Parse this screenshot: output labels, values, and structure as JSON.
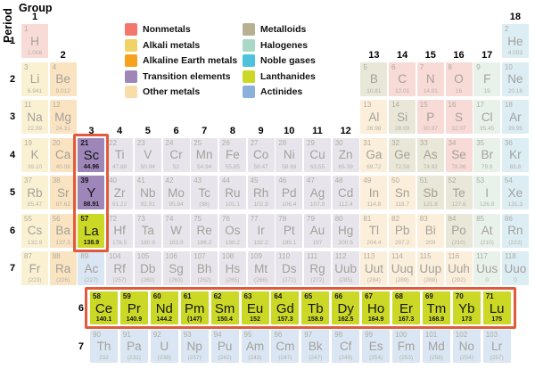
{
  "axis": {
    "group": "Group",
    "period": "Period"
  },
  "annotations": {
    "box_color": "#e25a3c",
    "boxes": [
      {
        "id": "group3-rare-earth-box",
        "contains": "Sc, Y, La"
      },
      {
        "id": "lanthanide-series-box",
        "contains": "Ce–Lu"
      }
    ]
  },
  "categories": {
    "nm": {
      "label": "Nonmetals",
      "solid": "#f4776d",
      "faded": "#f8dad7"
    },
    "ak": {
      "label": "Alkali metals",
      "solid": "#f0d266",
      "faded": "#faf1d3"
    },
    "ae": {
      "label": "Alkaline Earth metals",
      "solid": "#f6a21f",
      "faded": "#fae3c0"
    },
    "tr": {
      "label": "Transition elements",
      "solid": "#9e87b8",
      "faded": "#e8e4ec"
    },
    "om": {
      "label": "Other metals",
      "solid": "#f8ddab",
      "faded": "#fbeeda"
    },
    "md": {
      "label": "Metalloids",
      "solid": "#b6b192",
      "faded": "#e9e7d8"
    },
    "hg": {
      "label": "Halogenes",
      "solid": "#a9d8c6",
      "faded": "#e8f2ea"
    },
    "ng": {
      "label": "Noble gases",
      "solid": "#4cc2dd",
      "faded": "#dcedf4"
    },
    "la": {
      "label": "Lanthanides",
      "solid": "#ccd826",
      "faded": "#f0f3c8"
    },
    "ac": {
      "label": "Actinides",
      "solid": "#8bb0dc",
      "faded": "#dae6f3"
    }
  },
  "legend": {
    "column1": [
      "nm",
      "ak",
      "ae",
      "tr",
      "om"
    ],
    "column2": [
      "md",
      "hg",
      "ng",
      "la",
      "ac"
    ]
  },
  "group_labels": [
    {
      "t": "1",
      "col": 1,
      "above": 1
    },
    {
      "t": "2",
      "col": 2,
      "above": 2
    },
    {
      "t": "3",
      "col": 3,
      "above": 4
    },
    {
      "t": "4",
      "col": 4,
      "above": 4
    },
    {
      "t": "5",
      "col": 5,
      "above": 4
    },
    {
      "t": "6",
      "col": 6,
      "above": 4
    },
    {
      "t": "7",
      "col": 7,
      "above": 4
    },
    {
      "t": "8",
      "col": 8,
      "above": 4
    },
    {
      "t": "9",
      "col": 9,
      "above": 4
    },
    {
      "t": "10",
      "col": 10,
      "above": 4
    },
    {
      "t": "11",
      "col": 11,
      "above": 4
    },
    {
      "t": "12",
      "col": 12,
      "above": 4
    },
    {
      "t": "13",
      "col": 13,
      "above": 2
    },
    {
      "t": "14",
      "col": 14,
      "above": 2
    },
    {
      "t": "15",
      "col": 15,
      "above": 2
    },
    {
      "t": "16",
      "col": 16,
      "above": 2
    },
    {
      "t": "17",
      "col": 17,
      "above": 2
    },
    {
      "t": "18",
      "col": 18,
      "above": 1
    }
  ],
  "period_labels": [
    {
      "t": "1",
      "row": 1
    },
    {
      "t": "2",
      "row": 2
    },
    {
      "t": "3",
      "row": 3
    },
    {
      "t": "4",
      "row": 4
    },
    {
      "t": "5",
      "row": 5
    },
    {
      "t": "6",
      "row": 6
    },
    {
      "t": "7",
      "row": 7
    },
    {
      "t": "6",
      "row": 8
    },
    {
      "t": "7",
      "row": 9
    }
  ],
  "elements": [
    {
      "n": 1,
      "s": "H",
      "m": "1.008",
      "c": "nm",
      "r": 1,
      "g": 1
    },
    {
      "n": 2,
      "s": "He",
      "m": "4.003",
      "c": "ng",
      "r": 1,
      "g": 18
    },
    {
      "n": 3,
      "s": "Li",
      "m": "6.941",
      "c": "ak",
      "r": 2,
      "g": 1
    },
    {
      "n": 4,
      "s": "Be",
      "m": "9.012",
      "c": "ae",
      "r": 2,
      "g": 2
    },
    {
      "n": 5,
      "s": "B",
      "m": "10.81",
      "c": "md",
      "r": 2,
      "g": 13
    },
    {
      "n": 6,
      "s": "C",
      "m": "12.01",
      "c": "nm",
      "r": 2,
      "g": 14
    },
    {
      "n": 7,
      "s": "N",
      "m": "14.01",
      "c": "nm",
      "r": 2,
      "g": 15
    },
    {
      "n": 8,
      "s": "O",
      "m": "16",
      "c": "nm",
      "r": 2,
      "g": 16
    },
    {
      "n": 9,
      "s": "F",
      "m": "19",
      "c": "hg",
      "r": 2,
      "g": 17
    },
    {
      "n": 10,
      "s": "Ne",
      "m": "20.18",
      "c": "ng",
      "r": 2,
      "g": 18
    },
    {
      "n": 11,
      "s": "Na",
      "m": "22.99",
      "c": "ak",
      "r": 3,
      "g": 1
    },
    {
      "n": 12,
      "s": "Mg",
      "m": "24.31",
      "c": "ae",
      "r": 3,
      "g": 2
    },
    {
      "n": 13,
      "s": "Al",
      "m": "26.98",
      "c": "om",
      "r": 3,
      "g": 13
    },
    {
      "n": 14,
      "s": "Si",
      "m": "28.09",
      "c": "md",
      "r": 3,
      "g": 14
    },
    {
      "n": 15,
      "s": "P",
      "m": "30.97",
      "c": "nm",
      "r": 3,
      "g": 15
    },
    {
      "n": 16,
      "s": "S",
      "m": "32.07",
      "c": "nm",
      "r": 3,
      "g": 16
    },
    {
      "n": 17,
      "s": "Cl",
      "m": "35.45",
      "c": "hg",
      "r": 3,
      "g": 17
    },
    {
      "n": 18,
      "s": "Ar",
      "m": "39.95",
      "c": "ng",
      "r": 3,
      "g": 18
    },
    {
      "n": 19,
      "s": "K",
      "m": "39.10",
      "c": "ak",
      "r": 4,
      "g": 1
    },
    {
      "n": 20,
      "s": "Ca",
      "m": "40.08",
      "c": "ae",
      "r": 4,
      "g": 2
    },
    {
      "n": 21,
      "s": "Sc",
      "m": "44.96",
      "c": "tr",
      "r": 4,
      "g": 3,
      "h": true
    },
    {
      "n": 22,
      "s": "Ti",
      "m": "47.88",
      "c": "tr",
      "r": 4,
      "g": 4
    },
    {
      "n": 23,
      "s": "V",
      "m": "50.94",
      "c": "tr",
      "r": 4,
      "g": 5
    },
    {
      "n": 24,
      "s": "Cr",
      "m": "52",
      "c": "tr",
      "r": 4,
      "g": 6
    },
    {
      "n": 25,
      "s": "Mn",
      "m": "54.94",
      "c": "tr",
      "r": 4,
      "g": 7
    },
    {
      "n": 26,
      "s": "Fe",
      "m": "55.85",
      "c": "tr",
      "r": 4,
      "g": 8
    },
    {
      "n": 27,
      "s": "Co",
      "m": "58.47",
      "c": "tr",
      "r": 4,
      "g": 9
    },
    {
      "n": 28,
      "s": "Ni",
      "m": "58.69",
      "c": "tr",
      "r": 4,
      "g": 10
    },
    {
      "n": 29,
      "s": "Cu",
      "m": "63.55",
      "c": "tr",
      "r": 4,
      "g": 11
    },
    {
      "n": 30,
      "s": "Zn",
      "m": "65.39",
      "c": "tr",
      "r": 4,
      "g": 12
    },
    {
      "n": 31,
      "s": "Ga",
      "m": "69.72",
      "c": "om",
      "r": 4,
      "g": 13
    },
    {
      "n": 32,
      "s": "Ge",
      "m": "72.59",
      "c": "md",
      "r": 4,
      "g": 14
    },
    {
      "n": 33,
      "s": "As",
      "m": "74.92",
      "c": "md",
      "r": 4,
      "g": 15
    },
    {
      "n": 34,
      "s": "Se",
      "m": "78.96",
      "c": "nm",
      "r": 4,
      "g": 16
    },
    {
      "n": 35,
      "s": "Br",
      "m": "79.9",
      "c": "hg",
      "r": 4,
      "g": 17
    },
    {
      "n": 36,
      "s": "Kr",
      "m": "83.8",
      "c": "ng",
      "r": 4,
      "g": 18
    },
    {
      "n": 37,
      "s": "Rb",
      "m": "85.47",
      "c": "ak",
      "r": 5,
      "g": 1
    },
    {
      "n": 38,
      "s": "Sr",
      "m": "87.62",
      "c": "ae",
      "r": 5,
      "g": 2
    },
    {
      "n": 39,
      "s": "Y",
      "m": "88.91",
      "c": "tr",
      "r": 5,
      "g": 3,
      "h": true
    },
    {
      "n": 40,
      "s": "Zr",
      "m": "91.22",
      "c": "tr",
      "r": 5,
      "g": 4
    },
    {
      "n": 41,
      "s": "Nb",
      "m": "92.91",
      "c": "tr",
      "r": 5,
      "g": 5
    },
    {
      "n": 42,
      "s": "Mo",
      "m": "95.94",
      "c": "tr",
      "r": 5,
      "g": 6
    },
    {
      "n": 43,
      "s": "Tc",
      "m": "(98)",
      "c": "tr",
      "r": 5,
      "g": 7
    },
    {
      "n": 44,
      "s": "Ru",
      "m": "101.1",
      "c": "tr",
      "r": 5,
      "g": 8
    },
    {
      "n": 45,
      "s": "Rh",
      "m": "102.9",
      "c": "tr",
      "r": 5,
      "g": 9
    },
    {
      "n": 46,
      "s": "Pd",
      "m": "106.4",
      "c": "tr",
      "r": 5,
      "g": 10
    },
    {
      "n": 47,
      "s": "Ag",
      "m": "107.9",
      "c": "tr",
      "r": 5,
      "g": 11
    },
    {
      "n": 48,
      "s": "Cd",
      "m": "112.4",
      "c": "tr",
      "r": 5,
      "g": 12
    },
    {
      "n": 49,
      "s": "In",
      "m": "114.8",
      "c": "om",
      "r": 5,
      "g": 13
    },
    {
      "n": 50,
      "s": "Sn",
      "m": "118.7",
      "c": "om",
      "r": 5,
      "g": 14
    },
    {
      "n": 51,
      "s": "Sb",
      "m": "121.8",
      "c": "md",
      "r": 5,
      "g": 15
    },
    {
      "n": 52,
      "s": "Te",
      "m": "127.6",
      "c": "md",
      "r": 5,
      "g": 16
    },
    {
      "n": 53,
      "s": "I",
      "m": "126.9",
      "c": "hg",
      "r": 5,
      "g": 17
    },
    {
      "n": 54,
      "s": "Xe",
      "m": "131.3",
      "c": "ng",
      "r": 5,
      "g": 18
    },
    {
      "n": 55,
      "s": "Cs",
      "m": "132.9",
      "c": "ak",
      "r": 6,
      "g": 1
    },
    {
      "n": 56,
      "s": "Ba",
      "m": "137.3",
      "c": "ae",
      "r": 6,
      "g": 2
    },
    {
      "n": 57,
      "s": "La",
      "m": "138.9",
      "c": "la",
      "r": 6,
      "g": 3,
      "h": true
    },
    {
      "n": 72,
      "s": "Hf",
      "m": "178.5",
      "c": "tr",
      "r": 6,
      "g": 4
    },
    {
      "n": 73,
      "s": "Ta",
      "m": "180.9",
      "c": "tr",
      "r": 6,
      "g": 5
    },
    {
      "n": 74,
      "s": "W",
      "m": "183.9",
      "c": "tr",
      "r": 6,
      "g": 6
    },
    {
      "n": 75,
      "s": "Re",
      "m": "186.2",
      "c": "tr",
      "r": 6,
      "g": 7
    },
    {
      "n": 76,
      "s": "Os",
      "m": "190.2",
      "c": "tr",
      "r": 6,
      "g": 8
    },
    {
      "n": 77,
      "s": "Ir",
      "m": "192.2",
      "c": "tr",
      "r": 6,
      "g": 9
    },
    {
      "n": 78,
      "s": "Pt",
      "m": "195.1",
      "c": "tr",
      "r": 6,
      "g": 10
    },
    {
      "n": 79,
      "s": "Au",
      "m": "197",
      "c": "tr",
      "r": 6,
      "g": 11
    },
    {
      "n": 80,
      "s": "Hg",
      "m": "200.5",
      "c": "tr",
      "r": 6,
      "g": 12
    },
    {
      "n": 81,
      "s": "Tl",
      "m": "204.4",
      "c": "om",
      "r": 6,
      "g": 13
    },
    {
      "n": 82,
      "s": "Pb",
      "m": "207.2",
      "c": "om",
      "r": 6,
      "g": 14
    },
    {
      "n": 83,
      "s": "Bi",
      "m": "209",
      "c": "om",
      "r": 6,
      "g": 15
    },
    {
      "n": 84,
      "s": "Po",
      "m": "(210)",
      "c": "md",
      "r": 6,
      "g": 16
    },
    {
      "n": 85,
      "s": "At",
      "m": "(210)",
      "c": "hg",
      "r": 6,
      "g": 17
    },
    {
      "n": 86,
      "s": "Rn",
      "m": "(222)",
      "c": "ng",
      "r": 6,
      "g": 18
    },
    {
      "n": 87,
      "s": "Fr",
      "m": "(223)",
      "c": "ak",
      "r": 7,
      "g": 1
    },
    {
      "n": 88,
      "s": "Ra",
      "m": "(226)",
      "c": "ae",
      "r": 7,
      "g": 2
    },
    {
      "n": 89,
      "s": "Ac",
      "m": "(227)",
      "c": "ac",
      "r": 7,
      "g": 3
    },
    {
      "n": 104,
      "s": "Rf",
      "m": "(257)",
      "c": "tr",
      "r": 7,
      "g": 4
    },
    {
      "n": 105,
      "s": "Db",
      "m": "(260)",
      "c": "tr",
      "r": 7,
      "g": 5
    },
    {
      "n": 106,
      "s": "Sg",
      "m": "(263)",
      "c": "tr",
      "r": 7,
      "g": 6
    },
    {
      "n": 107,
      "s": "Bh",
      "m": "(262)",
      "c": "tr",
      "r": 7,
      "g": 7
    },
    {
      "n": 108,
      "s": "Hs",
      "m": "(265)",
      "c": "tr",
      "r": 7,
      "g": 8
    },
    {
      "n": 109,
      "s": "Mt",
      "m": "(266)",
      "c": "tr",
      "r": 7,
      "g": 9
    },
    {
      "n": 110,
      "s": "Ds",
      "m": "(271)",
      "c": "tr",
      "r": 7,
      "g": 10
    },
    {
      "n": 111,
      "s": "Rg",
      "m": "(272)",
      "c": "tr",
      "r": 7,
      "g": 11
    },
    {
      "n": 112,
      "s": "Uub",
      "m": "(285)",
      "c": "tr",
      "r": 7,
      "g": 12
    },
    {
      "n": 113,
      "s": "Uut",
      "m": "(284)",
      "c": "om",
      "r": 7,
      "g": 13
    },
    {
      "n": 114,
      "s": "Uuq",
      "m": "(289)",
      "c": "om",
      "r": 7,
      "g": 14
    },
    {
      "n": 115,
      "s": "Uup",
      "m": "(288)",
      "c": "om",
      "r": 7,
      "g": 15
    },
    {
      "n": 116,
      "s": "Uuh",
      "m": "(292)",
      "c": "om",
      "r": 7,
      "g": 16
    },
    {
      "n": 117,
      "s": "Uus",
      "m": "0",
      "c": "hg",
      "r": 7,
      "g": 17
    },
    {
      "n": 118,
      "s": "Uuo",
      "m": "0",
      "c": "ng",
      "r": 7,
      "g": 18
    },
    {
      "n": 58,
      "s": "Ce",
      "m": "140.1",
      "c": "la",
      "r": 8,
      "g": 1,
      "h": true
    },
    {
      "n": 59,
      "s": "Pr",
      "m": "140.9",
      "c": "la",
      "r": 8,
      "g": 2,
      "h": true
    },
    {
      "n": 60,
      "s": "Nd",
      "m": "144.2",
      "c": "la",
      "r": 8,
      "g": 3,
      "h": true
    },
    {
      "n": 61,
      "s": "Pm",
      "m": "(147)",
      "c": "la",
      "r": 8,
      "g": 4,
      "h": true
    },
    {
      "n": 62,
      "s": "Sm",
      "m": "150.4",
      "c": "la",
      "r": 8,
      "g": 5,
      "h": true
    },
    {
      "n": 63,
      "s": "Eu",
      "m": "152",
      "c": "la",
      "r": 8,
      "g": 6,
      "h": true
    },
    {
      "n": 64,
      "s": "Gd",
      "m": "157.3",
      "c": "la",
      "r": 8,
      "g": 7,
      "h": true
    },
    {
      "n": 65,
      "s": "Tb",
      "m": "158.9",
      "c": "la",
      "r": 8,
      "g": 8,
      "h": true
    },
    {
      "n": 66,
      "s": "Dy",
      "m": "162.5",
      "c": "la",
      "r": 8,
      "g": 9,
      "h": true
    },
    {
      "n": 67,
      "s": "Ho",
      "m": "164.9",
      "c": "la",
      "r": 8,
      "g": 10,
      "h": true
    },
    {
      "n": 68,
      "s": "Er",
      "m": "167.3",
      "c": "la",
      "r": 8,
      "g": 11,
      "h": true
    },
    {
      "n": 69,
      "s": "Tm",
      "m": "168.9",
      "c": "la",
      "r": 8,
      "g": 12,
      "h": true
    },
    {
      "n": 70,
      "s": "Yb",
      "m": "173",
      "c": "la",
      "r": 8,
      "g": 13,
      "h": true
    },
    {
      "n": 71,
      "s": "Lu",
      "m": "175",
      "c": "la",
      "r": 8,
      "g": 14,
      "h": true
    },
    {
      "n": 90,
      "s": "Th",
      "m": "232",
      "c": "ac",
      "r": 9,
      "g": 1
    },
    {
      "n": 91,
      "s": "Pa",
      "m": "(231)",
      "c": "ac",
      "r": 9,
      "g": 2
    },
    {
      "n": 92,
      "s": "U",
      "m": "(238)",
      "c": "ac",
      "r": 9,
      "g": 3
    },
    {
      "n": 93,
      "s": "Np",
      "m": "(237)",
      "c": "ac",
      "r": 9,
      "g": 4
    },
    {
      "n": 94,
      "s": "Pu",
      "m": "(242)",
      "c": "ac",
      "r": 9,
      "g": 5
    },
    {
      "n": 95,
      "s": "Am",
      "m": "(243)",
      "c": "ac",
      "r": 9,
      "g": 6
    },
    {
      "n": 96,
      "s": "Cm",
      "m": "(247)",
      "c": "ac",
      "r": 9,
      "g": 7
    },
    {
      "n": 97,
      "s": "Bk",
      "m": "(247)",
      "c": "ac",
      "r": 9,
      "g": 8
    },
    {
      "n": 98,
      "s": "Cf",
      "m": "(249)",
      "c": "ac",
      "r": 9,
      "g": 9
    },
    {
      "n": 99,
      "s": "Es",
      "m": "(254)",
      "c": "ac",
      "r": 9,
      "g": 10
    },
    {
      "n": 100,
      "s": "Fm",
      "m": "(253)",
      "c": "ac",
      "r": 9,
      "g": 11
    },
    {
      "n": 101,
      "s": "Md",
      "m": "(256)",
      "c": "ac",
      "r": 9,
      "g": 12
    },
    {
      "n": 102,
      "s": "No",
      "m": "(254)",
      "c": "ac",
      "r": 9,
      "g": 13
    },
    {
      "n": 103,
      "s": "Lr",
      "m": "(257)",
      "c": "ac",
      "r": 9,
      "g": 14
    }
  ]
}
